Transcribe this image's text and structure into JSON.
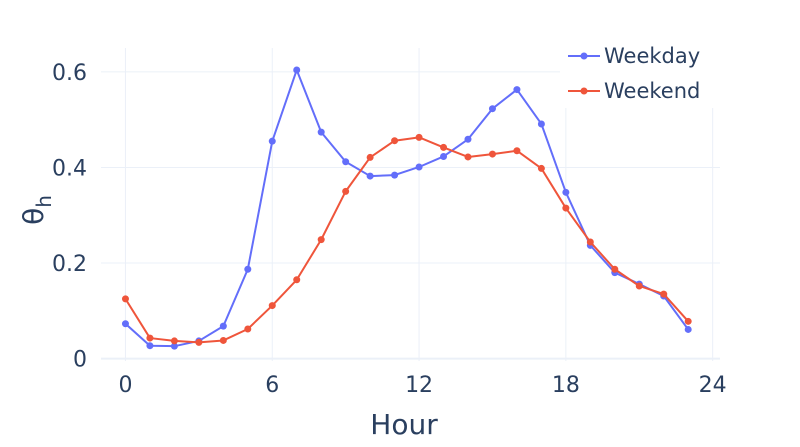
{
  "chart_data": {
    "type": "line",
    "xlabel": "Hour",
    "ylabel_main": "θ",
    "ylabel_sub": "h",
    "xlim": [
      -1,
      24.3
    ],
    "ylim": [
      -0.005,
      0.65
    ],
    "x_ticks": [
      0,
      6,
      12,
      18,
      24
    ],
    "x_tick_labels": [
      "0",
      "6",
      "12",
      "18",
      "24"
    ],
    "y_ticks": [
      0,
      0.2,
      0.4,
      0.6
    ],
    "y_tick_labels": [
      "0",
      "0.2",
      "0.4",
      "0.6"
    ],
    "grid": true,
    "legend_position": "top-right",
    "x": [
      0,
      1,
      2,
      3,
      4,
      5,
      6,
      7,
      8,
      9,
      10,
      11,
      12,
      13,
      14,
      15,
      16,
      17,
      18,
      19,
      20,
      21,
      22,
      23
    ],
    "series": [
      {
        "name": "Weekday",
        "color": "#636efa",
        "values": [
          0.073,
          0.027,
          0.026,
          0.037,
          0.068,
          0.187,
          0.455,
          0.604,
          0.474,
          0.412,
          0.382,
          0.384,
          0.401,
          0.423,
          0.459,
          0.523,
          0.563,
          0.491,
          0.348,
          0.237,
          0.18,
          0.156,
          0.131,
          0.061
        ]
      },
      {
        "name": "Weekend",
        "color": "#ef553b",
        "values": [
          0.125,
          0.043,
          0.037,
          0.034,
          0.038,
          0.062,
          0.111,
          0.165,
          0.249,
          0.35,
          0.421,
          0.456,
          0.463,
          0.442,
          0.422,
          0.428,
          0.435,
          0.398,
          0.315,
          0.244,
          0.187,
          0.152,
          0.135,
          0.078
        ]
      }
    ]
  }
}
